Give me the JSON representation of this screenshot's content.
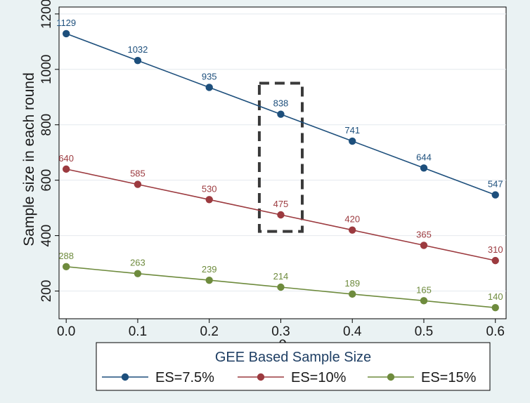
{
  "chart_data": {
    "type": "line",
    "title": "",
    "xlabel": "ρ",
    "ylabel": "Sample size in each round",
    "x": [
      0.0,
      0.1,
      0.2,
      0.3,
      0.4,
      0.5,
      0.6
    ],
    "x_tick_labels": [
      "0.0",
      "0.1",
      "0.2",
      "0.3",
      "0.4",
      "0.5",
      "0.6"
    ],
    "y_ticks": [
      200,
      400,
      600,
      800,
      1000,
      1200
    ],
    "y_tick_labels": [
      "200",
      "400",
      "600",
      "800",
      "1000",
      "1200"
    ],
    "xlim": [
      -0.01,
      0.615
    ],
    "ylim": [
      100,
      1225
    ],
    "grid": true,
    "legend": {
      "title": "GEE Based Sample Size",
      "placement": "bottom"
    },
    "series": [
      {
        "name": "ES=7.5%",
        "color": "#1d4f7c",
        "values": [
          1129,
          1032,
          935,
          838,
          741,
          644,
          547
        ]
      },
      {
        "name": "ES=10%",
        "color": "#9c3a3f",
        "values": [
          640,
          585,
          530,
          475,
          420,
          365,
          310
        ]
      },
      {
        "name": "ES=15%",
        "color": "#6e8b3d",
        "values": [
          288,
          263,
          239,
          214,
          189,
          165,
          140
        ]
      }
    ],
    "highlight_box": {
      "x": [
        0.27,
        0.33
      ],
      "y": [
        415,
        950
      ],
      "style": "dashed",
      "color": "#3a3a3a"
    }
  }
}
